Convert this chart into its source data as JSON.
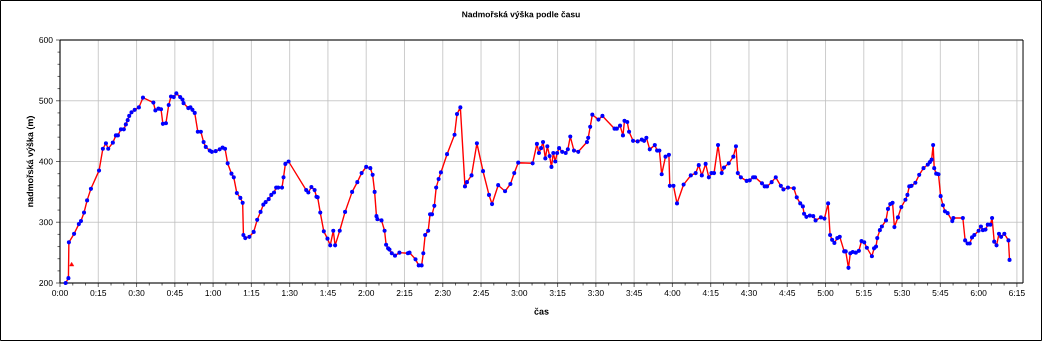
{
  "chart_data": {
    "type": "line",
    "title": "Nadmořská výška podle času",
    "xlabel": "čas",
    "ylabel": "nadmořská výška (m)",
    "xlim": [
      0,
      6.29
    ],
    "ylim": [
      200,
      600
    ],
    "yticks": [
      200,
      300,
      400,
      500,
      600
    ],
    "xticks": [
      {
        "value": 0,
        "label": "0:00"
      },
      {
        "value": 0.25,
        "label": "0:15"
      },
      {
        "value": 0.5,
        "label": "0:30"
      },
      {
        "value": 0.75,
        "label": "0:45"
      },
      {
        "value": 1,
        "label": "1:00"
      },
      {
        "value": 1.25,
        "label": "1:15"
      },
      {
        "value": 1.5,
        "label": "1:30"
      },
      {
        "value": 1.75,
        "label": "1:45"
      },
      {
        "value": 2,
        "label": "2:00"
      },
      {
        "value": 2.25,
        "label": "2:15"
      },
      {
        "value": 2.5,
        "label": "2:30"
      },
      {
        "value": 2.75,
        "label": "2:45"
      },
      {
        "value": 3,
        "label": "3:00"
      },
      {
        "value": 3.25,
        "label": "3:15"
      },
      {
        "value": 3.5,
        "label": "3:30"
      },
      {
        "value": 3.75,
        "label": "3:45"
      },
      {
        "value": 4,
        "label": "4:00"
      },
      {
        "value": 4.25,
        "label": "4:15"
      },
      {
        "value": 4.5,
        "label": "4:30"
      },
      {
        "value": 4.75,
        "label": "4:45"
      },
      {
        "value": 5,
        "label": "5:00"
      },
      {
        "value": 5.25,
        "label": "5:15"
      },
      {
        "value": 5.5,
        "label": "5:30"
      },
      {
        "value": 5.75,
        "label": "5:45"
      },
      {
        "value": 6,
        "label": "6:00"
      },
      {
        "value": 6.25,
        "label": "6:15"
      }
    ],
    "grid": true,
    "marker": "circle",
    "line_style": "solid",
    "series": [
      {
        "color": "#ff0000",
        "x": [
          0.037,
          0.055,
          0.058,
          0.092,
          0.123,
          0.137,
          0.157,
          0.177,
          0.202,
          0.255,
          0.28,
          0.3,
          0.315,
          0.345,
          0.365,
          0.378,
          0.398,
          0.417,
          0.43,
          0.442,
          0.452,
          0.467,
          0.488,
          0.515,
          0.542,
          0.61,
          0.623,
          0.643,
          0.66,
          0.672,
          0.692,
          0.71,
          0.725,
          0.743,
          0.76,
          0.785,
          0.8,
          0.807,
          0.838,
          0.852,
          0.865,
          0.88,
          0.9,
          0.92,
          0.938,
          0.952,
          0.978,
          0.992,
          1.017,
          1.043,
          1.062,
          1.078,
          1.095,
          1.12,
          1.135,
          1.155,
          1.178,
          1.193,
          1.198,
          1.21,
          1.237,
          1.265,
          1.288,
          1.31,
          1.328,
          1.343,
          1.363,
          1.38,
          1.398,
          1.412,
          1.425,
          1.45,
          1.46,
          1.472,
          1.493,
          1.608,
          1.622,
          1.642,
          1.663,
          1.675,
          1.683,
          1.7,
          1.723,
          1.747,
          1.765,
          1.785,
          1.797,
          1.827,
          1.862,
          1.908,
          1.942,
          1.97,
          2.0,
          2.027,
          2.042,
          2.055,
          2.067,
          2.073,
          2.1,
          2.12,
          2.13,
          2.143,
          2.152,
          2.167,
          2.188,
          2.217,
          2.272,
          2.283,
          2.322,
          2.343,
          2.362,
          2.373,
          2.385,
          2.405,
          2.417,
          2.43,
          2.445,
          2.457,
          2.473,
          2.488,
          2.528,
          2.577,
          2.593,
          2.615,
          2.645,
          2.658,
          2.688,
          2.723,
          2.763,
          2.802,
          2.822,
          2.862,
          2.907,
          2.942,
          2.967,
          2.993,
          3.087,
          3.115,
          3.128,
          3.142,
          3.155,
          3.17,
          3.183,
          3.198,
          3.21,
          3.222,
          3.235,
          3.247,
          3.26,
          3.28,
          3.303,
          3.317,
          3.333,
          3.357,
          3.385,
          3.442,
          3.45,
          3.463,
          3.477,
          3.517,
          3.543,
          3.622,
          3.637,
          3.658,
          3.677,
          3.687,
          3.705,
          3.717,
          3.743,
          3.773,
          3.8,
          3.815,
          3.83,
          3.852,
          3.885,
          3.9,
          3.915,
          3.93,
          3.955,
          3.977,
          3.983,
          4.007,
          4.03,
          4.073,
          4.12,
          4.152,
          4.172,
          4.192,
          4.217,
          4.238,
          4.255,
          4.272,
          4.298,
          4.322,
          4.337,
          4.368,
          4.398,
          4.415,
          4.427,
          4.447,
          4.485,
          4.505,
          4.527,
          4.54,
          4.585,
          4.603,
          4.618,
          4.648,
          4.675,
          4.708,
          4.725,
          4.755,
          4.793,
          4.812,
          4.835,
          4.852,
          4.86,
          4.875,
          4.898,
          4.92,
          4.935,
          4.97,
          4.993,
          5.017,
          5.03,
          5.043,
          5.058,
          5.077,
          5.093,
          5.122,
          5.132,
          5.15,
          5.162,
          5.178,
          5.198,
          5.218,
          5.235,
          5.253,
          5.27,
          5.303,
          5.317,
          5.33,
          5.338,
          5.355,
          5.368,
          5.395,
          5.408,
          5.423,
          5.438,
          5.45,
          5.473,
          5.495,
          5.522,
          5.535,
          5.547,
          5.562,
          5.587,
          5.612,
          5.64,
          5.668,
          5.682,
          5.693,
          5.703,
          5.71,
          5.723,
          5.738,
          5.752,
          5.767,
          5.78,
          5.798,
          5.828,
          5.835,
          5.897,
          5.912,
          5.928,
          5.942,
          5.957,
          5.972,
          6.0,
          6.015,
          6.028,
          6.045,
          6.06,
          6.077,
          6.088,
          6.102,
          6.117,
          6.133,
          6.147,
          6.168,
          6.195,
          6.202
        ],
        "values": [
          200,
          208,
          267,
          281,
          297,
          302,
          316,
          336,
          355,
          385,
          421,
          430,
          421,
          431,
          443,
          443,
          453,
          453,
          461,
          468,
          475,
          481,
          485,
          489,
          505,
          497,
          484,
          487,
          486,
          462,
          463,
          493,
          507,
          506,
          512,
          506,
          502,
          496,
          488,
          489,
          485,
          480,
          449,
          449,
          432,
          424,
          418,
          416,
          417,
          420,
          423,
          421,
          397,
          380,
          374,
          348,
          340,
          332,
          279,
          274,
          276,
          284,
          304,
          317,
          329,
          333,
          338,
          345,
          349,
          357,
          357,
          357,
          374,
          396,
          400,
          353,
          349,
          358,
          353,
          342,
          341,
          316,
          285,
          273,
          262,
          286,
          262,
          286,
          317,
          350,
          366,
          381,
          391,
          389,
          378,
          350,
          310,
          305,
          303,
          286,
          263,
          257,
          255,
          249,
          245,
          250,
          249,
          250,
          239,
          229,
          229,
          249,
          279,
          286,
          313,
          313,
          327,
          357,
          371,
          382,
          412,
          444,
          478,
          489,
          359,
          366,
          377,
          430,
          384,
          345,
          330,
          361,
          351,
          363,
          381,
          398,
          397,
          429,
          414,
          422,
          432,
          405,
          425,
          409,
          391,
          414,
          400,
          414,
          422,
          416,
          414,
          420,
          441,
          418,
          416,
          432,
          439,
          457,
          477,
          469,
          475,
          454,
          454,
          459,
          443,
          467,
          465,
          449,
          434,
          433,
          436,
          434,
          439,
          420,
          427,
          418,
          418,
          379,
          408,
          411,
          360,
          360,
          331,
          362,
          377,
          381,
          394,
          377,
          396,
          374,
          381,
          381,
          427,
          381,
          390,
          397,
          408,
          425,
          381,
          374,
          368,
          369,
          374,
          374,
          364,
          359,
          359,
          366,
          374,
          360,
          354,
          357,
          356,
          341,
          331,
          326,
          314,
          309,
          311,
          310,
          303,
          308,
          306,
          331,
          279,
          271,
          266,
          274,
          276,
          252,
          252,
          225,
          249,
          251,
          250,
          253,
          269,
          267,
          258,
          244,
          257,
          260,
          274,
          287,
          293,
          303,
          322,
          330,
          332,
          292,
          308,
          325,
          337,
          345,
          359,
          360,
          365,
          378,
          389,
          395,
          399,
          403,
          427,
          389,
          380,
          379,
          343,
          328,
          318,
          315,
          302,
          307,
          307,
          270,
          265,
          265,
          275,
          279,
          286,
          293,
          287,
          288,
          296,
          296,
          307,
          268,
          262,
          281,
          276,
          281,
          270,
          238
        ]
      },
      {
        "type": "scatter",
        "marker": "triangle",
        "color": "#ff0000",
        "x": [
          0.076
        ],
        "values": [
          230
        ]
      }
    ]
  }
}
